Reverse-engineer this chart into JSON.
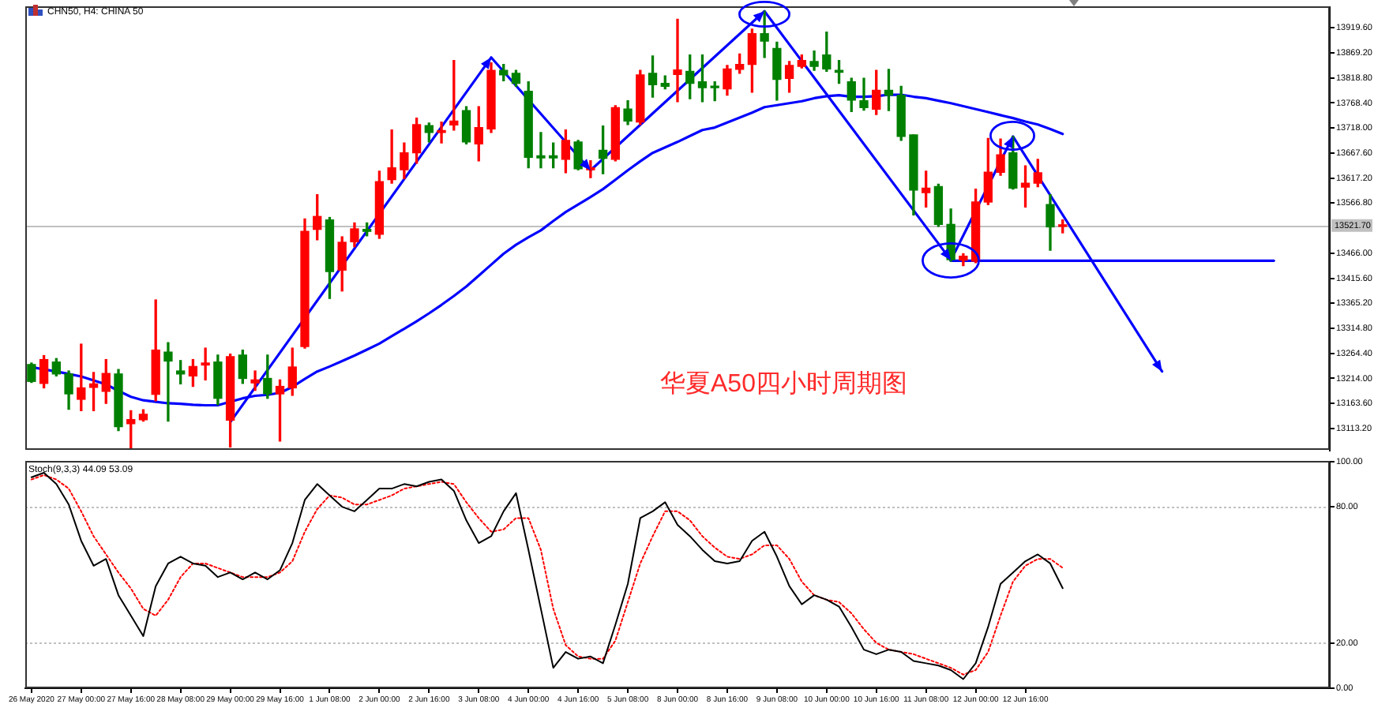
{
  "chart_data": [
    {
      "type": "candlestick",
      "title": "CHN50, H4: CHINA 50",
      "annotations": [
        "华夏A50四小时周期图"
      ],
      "categories": [
        null,
        null,
        null,
        null,
        null,
        null,
        null,
        null,
        null,
        null,
        null,
        null,
        null,
        null,
        null,
        null,
        null,
        null,
        null,
        null,
        null,
        null,
        null,
        null,
        null,
        null,
        null,
        null,
        null,
        null,
        null,
        null,
        null,
        null,
        null,
        null,
        null,
        null,
        null,
        null,
        null,
        null,
        null,
        null,
        null,
        null,
        null,
        null,
        null,
        null,
        null,
        null,
        null,
        null,
        null,
        null,
        null,
        null,
        null,
        null,
        null,
        null,
        null,
        null,
        null,
        null,
        null,
        null,
        null,
        null,
        null,
        null,
        null,
        null,
        null,
        null,
        null,
        null,
        null,
        null,
        null,
        null,
        null,
        null,
        null,
        null,
        null,
        null,
        null,
        null,
        null,
        null,
        null,
        null,
        null,
        null,
        null,
        null,
        null,
        null,
        null,
        null,
        null,
        null,
        null
      ],
      "ohlc": [
        [
          13242,
          13245,
          13206,
          13208
        ],
        [
          13204,
          13260,
          13195,
          13252
        ],
        [
          13247,
          13254,
          13219,
          13223
        ],
        [
          13223,
          13229,
          13152,
          13183
        ],
        [
          13172,
          13283,
          13149,
          13195
        ],
        [
          13196,
          13226,
          13149,
          13203
        ],
        [
          13188,
          13252,
          13164,
          13224
        ],
        [
          13223,
          13232,
          13109,
          13117
        ],
        [
          13123,
          13149,
          13074,
          13131
        ],
        [
          13131,
          13151,
          13128,
          13142
        ],
        [
          13182,
          13372,
          13169,
          13271
        ],
        [
          13267,
          13286,
          13128,
          13249
        ],
        [
          13229,
          13250,
          13203,
          13223
        ],
        [
          13219,
          13252,
          13198,
          13238
        ],
        [
          13241,
          13275,
          13211,
          13245
        ],
        [
          13247,
          13261,
          13161,
          13174
        ],
        [
          13130,
          13263,
          13076,
          13258
        ],
        [
          13261,
          13271,
          13204,
          13214
        ],
        [
          13205,
          13229,
          13190,
          13211
        ],
        [
          13214,
          13261,
          13174,
          13183
        ],
        [
          13183,
          13211,
          13088,
          13198
        ],
        [
          13195,
          13275,
          13180,
          13237
        ],
        [
          13278,
          13535,
          13275,
          13510
        ],
        [
          13514,
          13584,
          13493,
          13540
        ],
        [
          13533,
          13538,
          13375,
          13429
        ],
        [
          13432,
          13499,
          13390,
          13488
        ],
        [
          13489,
          13527,
          13479,
          13515
        ],
        [
          13514,
          13527,
          13501,
          13510
        ],
        [
          13504,
          13631,
          13496,
          13610
        ],
        [
          13614,
          13714,
          13607,
          13638
        ],
        [
          13634,
          13688,
          13616,
          13668
        ],
        [
          13668,
          13738,
          13647,
          13725
        ],
        [
          13723,
          13728,
          13690,
          13709
        ],
        [
          13709,
          13730,
          13688,
          13713
        ],
        [
          13724,
          13854,
          13714,
          13732
        ],
        [
          13753,
          13761,
          13686,
          13690
        ],
        [
          13686,
          13761,
          13652,
          13719
        ],
        [
          13716,
          13849,
          13709,
          13834
        ],
        [
          13834,
          13846,
          13813,
          13825
        ],
        [
          13828,
          13834,
          13802,
          13808
        ],
        [
          13792,
          13811,
          13638,
          13659
        ],
        [
          13662,
          13709,
          13638,
          13658
        ],
        [
          13662,
          13688,
          13638,
          13658
        ],
        [
          13655,
          13714,
          13628,
          13693
        ],
        [
          13690,
          13693,
          13634,
          13636
        ],
        [
          13634,
          13652,
          13618,
          13638
        ],
        [
          13673,
          13722,
          13626,
          13657
        ],
        [
          13655,
          13763,
          13652,
          13759
        ],
        [
          13756,
          13773,
          13725,
          13732
        ],
        [
          13730,
          13834,
          13725,
          13825
        ],
        [
          13828,
          13863,
          13780,
          13805
        ],
        [
          13808,
          13823,
          13797,
          13802
        ],
        [
          13826,
          13937,
          13771,
          13835
        ],
        [
          13832,
          13865,
          13777,
          13808
        ],
        [
          13811,
          13865,
          13771,
          13799
        ],
        [
          13802,
          13811,
          13773,
          13799
        ],
        [
          13797,
          13844,
          13784,
          13837
        ],
        [
          13836,
          13867,
          13828,
          13846
        ],
        [
          13846,
          13917,
          13790,
          13908
        ],
        [
          13908,
          13953,
          13860,
          13893
        ],
        [
          13878,
          13891,
          13774,
          13816
        ],
        [
          13818,
          13852,
          13790,
          13844
        ],
        [
          13842,
          13865,
          13839,
          13854
        ],
        [
          13852,
          13873,
          13834,
          13842
        ],
        [
          13865,
          13911,
          13832,
          13837
        ],
        [
          13834,
          13854,
          13808,
          13830
        ],
        [
          13811,
          13818,
          13751,
          13774
        ],
        [
          13773,
          13818,
          13754,
          13759
        ],
        [
          13756,
          13834,
          13745,
          13794
        ],
        [
          13794,
          13836,
          13753,
          13784
        ],
        [
          13784,
          13802,
          13693,
          13701
        ],
        [
          13704,
          13704,
          13543,
          13593
        ],
        [
          13588,
          13631,
          13559,
          13597
        ],
        [
          13600,
          13605,
          13520,
          13524
        ],
        [
          13524,
          13555,
          13450,
          13453
        ],
        [
          13452,
          13465,
          13441,
          13460
        ],
        [
          13450,
          13595,
          13447,
          13569
        ],
        [
          13569,
          13697,
          13564,
          13629
        ],
        [
          13629,
          13696,
          13623,
          13664
        ],
        [
          13668,
          13701,
          13595,
          13597
        ],
        [
          13599,
          13642,
          13559,
          13607
        ],
        [
          13607,
          13655,
          13600,
          13628
        ],
        [
          13564,
          13584,
          13472,
          13519
        ],
        [
          13520,
          13533,
          13507,
          13521.7
        ],
        null,
        null,
        null,
        null,
        null,
        null,
        null,
        null,
        null,
        null,
        null,
        null,
        null,
        null,
        null,
        null,
        null,
        null,
        null,
        null,
        null
      ],
      "colors": [
        "#008000",
        "#ff0000",
        "#008000",
        "#008000",
        "#ff0000",
        "#ff0000",
        "#ff0000",
        "#008000",
        "#ff0000",
        "#ff0000",
        "#ff0000",
        "#008000",
        "#008000",
        "#ff0000",
        "#ff0000",
        "#008000",
        "#ff0000",
        "#008000",
        "#ff0000",
        "#008000",
        "#ff0000",
        "#ff0000",
        "#ff0000",
        "#ff0000",
        "#008000",
        "#ff0000",
        "#ff0000",
        "#008000",
        "#ff0000",
        "#ff0000",
        "#ff0000",
        "#ff0000",
        "#008000",
        "#ff0000",
        "#ff0000",
        "#008000",
        "#ff0000",
        "#ff0000",
        "#008000",
        "#008000",
        "#008000",
        "#008000",
        "#008000",
        "#ff0000",
        "#008000",
        "#ff0000",
        "#008000",
        "#ff0000",
        "#008000",
        "#ff0000",
        "#008000",
        "#008000",
        "#ff0000",
        "#008000",
        "#008000",
        "#008000",
        "#ff0000",
        "#ff0000",
        "#ff0000",
        "#008000",
        "#008000",
        "#ff0000",
        "#ff0000",
        "#008000",
        "#008000",
        "#008000",
        "#008000",
        "#008000",
        "#ff0000",
        "#008000",
        "#008000",
        "#008000",
        "#ff0000",
        "#008000",
        "#008000",
        "#ff0000",
        "#ff0000",
        "#ff0000",
        "#ff0000",
        "#008000",
        "#ff0000",
        "#ff0000",
        "#008000",
        "#ff0000",
        null,
        null,
        null,
        null,
        null,
        null,
        null,
        null,
        null,
        null,
        null,
        null,
        null,
        null,
        null,
        null,
        null,
        null,
        null,
        null,
        null
      ],
      "series": [
        {
          "type": "line",
          "color": "#0000ff",
          "values": [
            13237,
            13232,
            13228,
            13223,
            13218,
            13210,
            13202,
            13189,
            13177,
            13170,
            13167,
            13164,
            13163,
            13161,
            13160,
            13160,
            13167,
            13174,
            13179,
            13181,
            13185,
            13197,
            13213,
            13228,
            13238,
            13249,
            13260,
            13272,
            13284,
            13299,
            13314,
            13329,
            13345,
            13362,
            13380,
            13399,
            13421,
            13443,
            13465,
            13483,
            13498,
            13512,
            13531,
            13549,
            13564,
            13579,
            13595,
            13614,
            13633,
            13651,
            13668,
            13679,
            13690,
            13702,
            13714,
            13719,
            13729,
            13739,
            13749,
            13760,
            13764,
            13768,
            13772,
            13778,
            13782,
            13784,
            13781,
            13781,
            13782,
            13785,
            13785,
            13781,
            13778,
            13773,
            13768,
            13762,
            13756,
            13750,
            13744,
            13738,
            13731,
            13725,
            13716,
            13706,
            null,
            null,
            null,
            null,
            null,
            null,
            null,
            null,
            null,
            null,
            null,
            null,
            null,
            null,
            null,
            null,
            null,
            null,
            null,
            null,
            null
          ]
        },
        {
          "type": "line",
          "color": "#0000ff",
          "values": [
            null,
            null,
            null,
            null,
            null,
            null,
            null,
            null,
            null,
            null,
            null,
            null,
            null,
            null,
            null,
            null,
            13126,
            null,
            null,
            null,
            null,
            null,
            null,
            null,
            null,
            null,
            null,
            null,
            null,
            null,
            null,
            null,
            null,
            null,
            null,
            null,
            null,
            13860,
            null,
            null,
            null,
            null,
            null,
            null,
            null,
            13633,
            null,
            null,
            null,
            null,
            null,
            null,
            null,
            null,
            null,
            null,
            null,
            null,
            null,
            13953,
            null,
            null,
            null,
            null,
            null,
            null,
            null,
            null,
            null,
            null,
            null,
            null,
            null,
            null,
            13452,
            null,
            null,
            null,
            null,
            13701,
            null,
            null,
            null,
            null,
            null,
            null,
            null,
            null,
            null,
            null,
            null,
            13228,
            null,
            null,
            null,
            null,
            null,
            null,
            null,
            null,
            null,
            null,
            null,
            null,
            null
          ]
        },
        {
          "type": "line",
          "color": "#0000ff",
          "values": [
            null,
            null,
            null,
            null,
            null,
            null,
            null,
            null,
            null,
            null,
            null,
            null,
            null,
            null,
            null,
            null,
            null,
            null,
            null,
            null,
            null,
            null,
            null,
            null,
            null,
            null,
            null,
            null,
            null,
            null,
            null,
            null,
            null,
            null,
            null,
            null,
            null,
            null,
            null,
            null,
            null,
            null,
            null,
            null,
            null,
            null,
            null,
            null,
            null,
            null,
            null,
            null,
            null,
            null,
            null,
            null,
            null,
            null,
            null,
            null,
            null,
            null,
            null,
            null,
            null,
            null,
            null,
            null,
            null,
            null,
            null,
            null,
            null,
            null,
            13451,
            null,
            null,
            null,
            null,
            null,
            null,
            null,
            null,
            null,
            null,
            null,
            null,
            null,
            null,
            null,
            null,
            null,
            null,
            null,
            null,
            null,
            null,
            null,
            null,
            null,
            13451,
            null,
            null,
            null,
            null
          ]
        }
      ],
      "ylim": [
        13068,
        13962
      ],
      "yticks": [
        {
          "value": 13919.6,
          "label": "13919.60"
        },
        {
          "value": 13869.2,
          "label": "13869.20"
        },
        {
          "value": 13818.8,
          "label": "13818.80"
        },
        {
          "value": 13768.4,
          "label": "13768.40"
        },
        {
          "value": 13718,
          "label": "13718.00"
        },
        {
          "value": 13667.6,
          "label": "13667.60"
        },
        {
          "value": 13617.2,
          "label": "13617.20"
        },
        {
          "value": 13566.8,
          "label": "13566.80"
        },
        {
          "value": 13466,
          "label": "13466.00"
        },
        {
          "value": 13415.6,
          "label": "13415.60"
        },
        {
          "value": 13365.2,
          "label": "13365.20"
        },
        {
          "value": 13314.8,
          "label": "13314.80"
        },
        {
          "value": 13264.4,
          "label": "13264.40"
        },
        {
          "value": 13214,
          "label": "13214.00"
        },
        {
          "value": 13163.6,
          "label": "13163.60"
        },
        {
          "value": 13113.2,
          "label": "13113.20"
        }
      ],
      "ref_lines": [
        {
          "axis": "y",
          "value": 13521.7,
          "label": "13521.70",
          "color": "#c0c0c0"
        }
      ],
      "tick_labels": "y"
    },
    {
      "type": "line",
      "title": "Stoch(9,3,3) 44.09 53.09",
      "categories": [
        "26 May 2020",
        null,
        null,
        null,
        "27 May 00:00",
        null,
        null,
        null,
        "27 May 16:00",
        null,
        null,
        null,
        "28 May 08:00",
        null,
        null,
        null,
        "29 May 00:00",
        null,
        null,
        null,
        "29 May 16:00",
        null,
        null,
        null,
        "1 Jun 08:00",
        null,
        null,
        null,
        "2 Jun 00:00",
        null,
        null,
        null,
        "2 Jun 16:00",
        null,
        null,
        null,
        "3 Jun 08:00",
        null,
        null,
        null,
        "4 Jun 00:00",
        null,
        null,
        null,
        "4 Jun 16:00",
        null,
        null,
        null,
        "5 Jun 08:00",
        null,
        null,
        null,
        "8 Jun 00:00",
        null,
        null,
        null,
        "8 Jun 16:00",
        null,
        null,
        null,
        "9 Jun 08:00",
        null,
        null,
        null,
        "10 Jun 00:00",
        null,
        null,
        null,
        "10 Jun 16:00",
        null,
        null,
        null,
        "11 Jun 08:00",
        null,
        null,
        null,
        "12 Jun 00:00",
        null,
        null,
        null,
        "12 Jun 16:00",
        null,
        null,
        null,
        null,
        null,
        null,
        null,
        null,
        null,
        null,
        null,
        null,
        null,
        null,
        null,
        null,
        null,
        null,
        null,
        null,
        null,
        null,
        null,
        null
      ],
      "series": [
        {
          "color": "#000000",
          "values": [
            93,
            95,
            90,
            81,
            65,
            54,
            57,
            41,
            32,
            23,
            45,
            55,
            58,
            55,
            54,
            49,
            51,
            48,
            51,
            48,
            52,
            64,
            83,
            90,
            85,
            80,
            78,
            83,
            88,
            88,
            90,
            89,
            91,
            92,
            87,
            74,
            64,
            67,
            78,
            86,
            61,
            35,
            9,
            16,
            13,
            14,
            11,
            28,
            46,
            75,
            78,
            82,
            72,
            67,
            61,
            56,
            55,
            56,
            65,
            69,
            58,
            45,
            37,
            41,
            39,
            36,
            27,
            17,
            15,
            17,
            16,
            12,
            11,
            10,
            8,
            4,
            11,
            27,
            46,
            51,
            56,
            59,
            55,
            44.09,
            null,
            null,
            null,
            null,
            null,
            null,
            null,
            null,
            null,
            null,
            null,
            null,
            null,
            null,
            null,
            null,
            null,
            null,
            null,
            null,
            null
          ]
        },
        {
          "color": "#ff0000",
          "line_style": "dotted",
          "values": [
            92,
            94,
            92,
            88,
            78,
            67,
            59,
            51,
            44,
            35,
            32,
            39,
            49,
            55,
            55,
            53,
            51,
            49,
            49,
            49,
            51,
            56,
            69,
            79,
            85,
            84,
            81,
            81,
            83,
            85,
            88,
            89,
            90,
            91,
            90,
            82,
            75,
            69,
            70,
            75,
            75,
            61,
            35,
            19,
            14,
            13,
            13,
            21,
            38,
            55,
            67,
            78,
            78,
            74,
            67,
            62,
            58,
            57,
            59,
            63,
            63,
            57,
            47,
            41,
            39,
            38,
            33,
            26,
            20,
            17,
            16,
            15,
            13,
            11,
            9,
            6,
            8,
            16,
            32,
            47,
            54,
            57,
            57,
            53.09,
            null,
            null,
            null,
            null,
            null,
            null,
            null,
            null,
            null,
            null,
            null,
            null,
            null,
            null,
            null,
            null,
            null,
            null,
            null,
            null,
            null
          ]
        }
      ],
      "ylim": [
        0,
        100
      ],
      "yticks": [
        {
          "value": 100,
          "label": "100.00"
        },
        {
          "value": 80,
          "label": "80.00"
        },
        {
          "value": 20,
          "label": "20.00"
        },
        {
          "value": 0,
          "label": "0.00"
        }
      ],
      "ref_lines": [
        {
          "axis": "y",
          "value": 80,
          "color": "#c0c0c0",
          "line_style": "dotted"
        },
        {
          "axis": "y",
          "value": 20,
          "color": "#c0c0c0",
          "line_style": "dotted"
        }
      ]
    }
  ]
}
